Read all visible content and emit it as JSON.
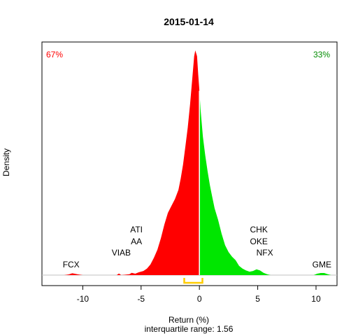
{
  "chart_data": {
    "type": "area",
    "title": "2015-01-14",
    "xlabel": "Return (%)",
    "xlabel2": "interquartile range: 1.56",
    "ylabel": "Density",
    "xlim": [
      -13.5,
      11.8
    ],
    "x_ticks": [
      -10,
      -5,
      0,
      5,
      10
    ],
    "negative_share_label": "67%",
    "positive_share_label": "33%",
    "colors": {
      "negative": "#ff0000",
      "positive": "#00e600",
      "iqr": "#ffcc00",
      "baseline": "#c0c0c0"
    },
    "iqr": [
      -1.3,
      0.26
    ],
    "density": {
      "x": [
        -11.6,
        -11.2,
        -10.9,
        -10.4,
        -10.0,
        -9.0,
        -8.0,
        -7.1,
        -6.9,
        -6.7,
        -6.0,
        -5.8,
        -5.5,
        -5.2,
        -4.8,
        -4.5,
        -4.2,
        -3.9,
        -3.6,
        -3.3,
        -3.0,
        -2.7,
        -2.4,
        -2.1,
        -1.8,
        -1.6,
        -1.4,
        -1.2,
        -1.0,
        -0.8,
        -0.6,
        -0.45,
        -0.35,
        -0.2,
        -0.1,
        0.0,
        0.1,
        0.2,
        0.3,
        0.5,
        0.7,
        0.9,
        1.1,
        1.3,
        1.6,
        1.9,
        2.2,
        2.5,
        2.8,
        3.1,
        3.4,
        3.7,
        4.0,
        4.3,
        4.6,
        4.9,
        5.2,
        5.5,
        5.8,
        6.1,
        6.5,
        7.0,
        8.0,
        9.0,
        9.8,
        10.1,
        10.4,
        10.7,
        11.0,
        11.3,
        11.6
      ],
      "y": [
        0.0,
        0.003,
        0.008,
        0.003,
        0.0,
        0.0,
        0.0,
        0.0,
        0.007,
        0.0,
        0.004,
        0.01,
        0.006,
        0.012,
        0.018,
        0.028,
        0.046,
        0.075,
        0.11,
        0.16,
        0.22,
        0.27,
        0.3,
        0.33,
        0.37,
        0.42,
        0.48,
        0.56,
        0.64,
        0.74,
        0.86,
        0.95,
        0.975,
        0.95,
        0.87,
        0.8,
        0.72,
        0.66,
        0.6,
        0.52,
        0.45,
        0.39,
        0.34,
        0.29,
        0.24,
        0.18,
        0.13,
        0.1,
        0.08,
        0.065,
        0.04,
        0.028,
        0.02,
        0.015,
        0.018,
        0.025,
        0.02,
        0.01,
        0.004,
        0.0,
        0.0,
        0.0,
        0.0,
        0.0,
        0.0,
        0.006,
        0.009,
        0.009,
        0.004,
        0.0,
        0.0
      ]
    },
    "annotations": [
      {
        "text": "FCX",
        "x": -11.0,
        "row": 0
      },
      {
        "text": "VIAB",
        "x": -6.7,
        "row": 1
      },
      {
        "text": "AA",
        "x": -5.4,
        "row": 2
      },
      {
        "text": "ATI",
        "x": -5.4,
        "row": 3
      },
      {
        "text": "CHK",
        "x": 5.1,
        "row": 3
      },
      {
        "text": "OKE",
        "x": 5.1,
        "row": 2
      },
      {
        "text": "NFX",
        "x": 5.6,
        "row": 1
      },
      {
        "text": "GME",
        "x": 10.5,
        "row": 0
      }
    ]
  }
}
